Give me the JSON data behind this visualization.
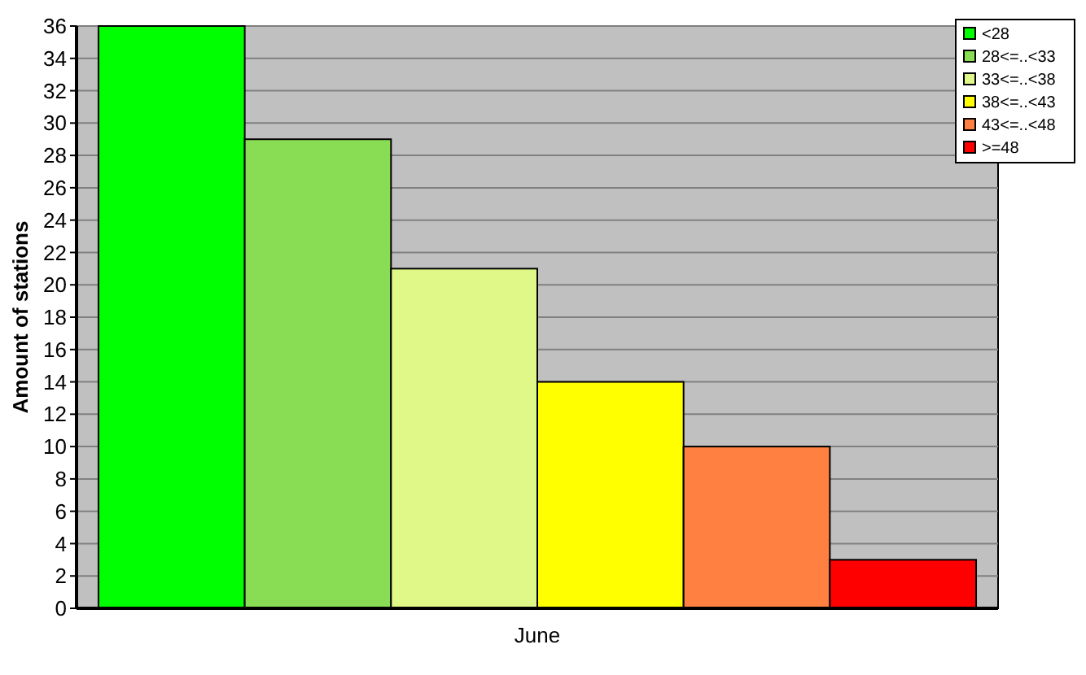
{
  "chart_data": {
    "type": "bar",
    "ylabel": "Amount of stations",
    "categories": [
      "June"
    ],
    "series": [
      {
        "name": "<28",
        "color": "#00ff00",
        "values": [
          36
        ]
      },
      {
        "name": "28<=..<33",
        "color": "#88dd55",
        "values": [
          29
        ]
      },
      {
        "name": "33<=..<38",
        "color": "#e0f888",
        "values": [
          21
        ]
      },
      {
        "name": "38<=..<43",
        "color": "#ffff00",
        "values": [
          14
        ]
      },
      {
        "name": "43<=..<48",
        "color": "#ff8040",
        "values": [
          10
        ]
      },
      {
        "name": ">=48",
        "color": "#ff0000",
        "values": [
          3
        ]
      }
    ],
    "ylim": [
      0,
      36
    ],
    "yticks": [
      0,
      2,
      4,
      6,
      8,
      10,
      12,
      14,
      16,
      18,
      20,
      22,
      24,
      26,
      28,
      30,
      32,
      34,
      36
    ],
    "grid": "y",
    "legend": "top right"
  }
}
